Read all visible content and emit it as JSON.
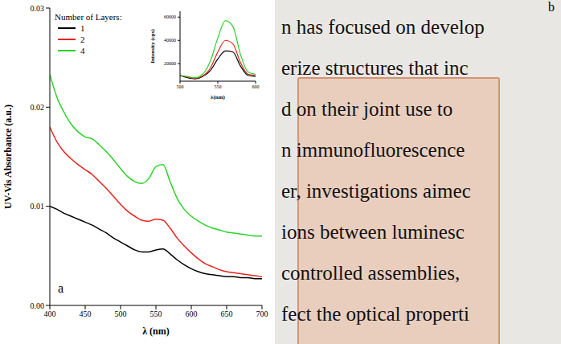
{
  "chart_data": [
    {
      "type": "line",
      "panel_label": "a",
      "x_label": "λ (nm)",
      "y_label": "UV-Vis Absorbance (a.u.)",
      "legend_title": "Number of Layers:",
      "legend": "upper left",
      "grid": false,
      "xlim": [
        400,
        700
      ],
      "xticks": [
        400,
        450,
        500,
        550,
        600,
        650,
        700
      ],
      "ylim": [
        0,
        0.03
      ],
      "yticks": [
        {
          "value": 0,
          "label": "0.00"
        },
        0.01,
        0.02,
        0.03
      ],
      "x": [
        400,
        410,
        420,
        430,
        440,
        450,
        460,
        470,
        480,
        490,
        500,
        510,
        520,
        530,
        540,
        550,
        560,
        570,
        580,
        590,
        600,
        610,
        620,
        630,
        640,
        650,
        660,
        670,
        680,
        690,
        700
      ],
      "series": [
        {
          "name": "1",
          "color": "#000000",
          "values": [
            0.01,
            0.0097,
            0.0093,
            0.009,
            0.0087,
            0.0084,
            0.0081,
            0.0077,
            0.0073,
            0.0068,
            0.0064,
            0.006,
            0.0056,
            0.0054,
            0.0054,
            0.0056,
            0.0057,
            0.0052,
            0.0046,
            0.0041,
            0.0037,
            0.0034,
            0.0032,
            0.0031,
            0.003,
            0.0029,
            0.0029,
            0.0028,
            0.0028,
            0.0027,
            0.0027
          ]
        },
        {
          "name": "2",
          "color": "#e8231f",
          "values": [
            0.018,
            0.0165,
            0.0155,
            0.0148,
            0.0142,
            0.0137,
            0.0132,
            0.0125,
            0.0118,
            0.011,
            0.0102,
            0.0095,
            0.009,
            0.0086,
            0.0085,
            0.0087,
            0.0086,
            0.0078,
            0.0068,
            0.006,
            0.0053,
            0.0047,
            0.0042,
            0.0039,
            0.0036,
            0.0034,
            0.0033,
            0.0032,
            0.0031,
            0.003,
            0.0029
          ]
        },
        {
          "name": "4",
          "color": "#2bd12b",
          "values": [
            0.0233,
            0.021,
            0.0195,
            0.0183,
            0.0175,
            0.017,
            0.0168,
            0.0162,
            0.0155,
            0.0147,
            0.0138,
            0.013,
            0.0125,
            0.0123,
            0.0128,
            0.014,
            0.0142,
            0.0125,
            0.0108,
            0.0097,
            0.009,
            0.0085,
            0.0081,
            0.0078,
            0.0076,
            0.0074,
            0.0073,
            0.0072,
            0.0071,
            0.007,
            0.007
          ]
        }
      ]
    },
    {
      "type": "line",
      "x_label": "λ(nm)",
      "y_label": "Intensity (cps)",
      "grid": false,
      "xlim": [
        500,
        600
      ],
      "xticks": [
        500,
        550,
        600
      ],
      "ylim": [
        5000,
        65000
      ],
      "yticks": [
        20000,
        40000,
        60000
      ],
      "x": [
        500,
        510,
        520,
        530,
        540,
        550,
        560,
        570,
        580,
        590,
        600
      ],
      "series": [
        {
          "name": "1",
          "color": "#000000",
          "values": [
            10000,
            8000,
            7000,
            9000,
            14000,
            24000,
            31000,
            30000,
            18000,
            10000,
            9000
          ]
        },
        {
          "name": "2",
          "color": "#e8231f",
          "values": [
            10000,
            8500,
            7500,
            9500,
            16000,
            30000,
            40000,
            37000,
            21000,
            11000,
            10000
          ]
        },
        {
          "name": "4",
          "color": "#2bd12b",
          "values": [
            10000,
            9000,
            8000,
            11000,
            22000,
            42000,
            57000,
            52000,
            28000,
            13000,
            11000
          ]
        }
      ]
    }
  ],
  "photo": {
    "panel_label": "b",
    "text_lines": [
      "n has focused on develop",
      "erize structures that inc",
      "d on their joint use to",
      "n immunofluorescence",
      "er, investigations aimec",
      "ions between luminesc",
      "controlled assemblies,",
      "fect the optical properti"
    ]
  }
}
